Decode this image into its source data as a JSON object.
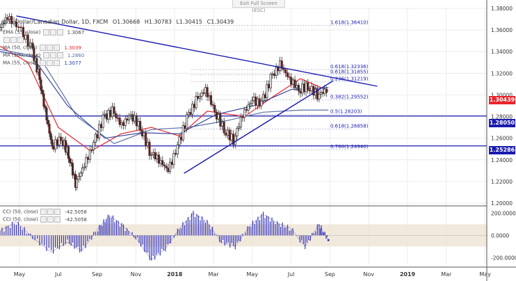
{
  "window": {
    "exit_fullscreen": "Exit Full Screen (ESC)"
  },
  "header": {
    "symbol": "U.S. Dollar/Canadian Dollar, 1D, FXCM",
    "open": "O1.30668",
    "high": "H1.30783",
    "low": "L1.30415",
    "close": "C1.30439"
  },
  "indicators": [
    {
      "label": "EMA (55, close)",
      "value": "1.3067",
      "color": "#3a4a9e"
    },
    {
      "label": "",
      "value": "",
      "color": "#88aacc"
    },
    {
      "label": "MA (50, close)",
      "value": "1.3039",
      "color": "#e8242b"
    },
    {
      "label": "MA (100, close)",
      "value": "1.2860",
      "color": "#5a6fa8"
    },
    {
      "label": "MA (55, close)",
      "value": "1.3077",
      "color": "#2233aa"
    }
  ],
  "cci": [
    {
      "label": "CCI (50, close)",
      "value": "-42.5058"
    },
    {
      "label": "CCI (50, close)",
      "value": "-42.5058"
    }
  ],
  "price_tags": [
    {
      "value": "1.30439",
      "color": "#e8242b"
    },
    {
      "value": "1.28050",
      "color": "#1a1ab0"
    },
    {
      "value": "1.25286",
      "color": "#1a1ab0"
    }
  ],
  "chart_data": {
    "type": "candlestick",
    "title": "U.S. Dollar/Canadian Dollar, 1D, FXCM",
    "y_range": [
      1.2,
      1.38
    ],
    "y_ticks": [
      "1.38000",
      "1.36000",
      "1.34000",
      "1.32000",
      "1.30000",
      "1.28000",
      "1.26000",
      "1.24000",
      "1.22000",
      "1.20000"
    ],
    "x_ticks": [
      "May",
      "Jul",
      "Sep",
      "Nov",
      "2018",
      "Mar",
      "May",
      "Jul",
      "Sep",
      "Nov",
      "2019",
      "Mar",
      "May"
    ],
    "x_range": [
      2017.33,
      2019.42
    ],
    "closes": [
      [
        2017.33,
        1.36
      ],
      [
        2017.37,
        1.372
      ],
      [
        2017.42,
        1.362
      ],
      [
        2017.47,
        1.345
      ],
      [
        2017.5,
        1.32
      ],
      [
        2017.53,
        1.285
      ],
      [
        2017.56,
        1.252
      ],
      [
        2017.6,
        1.26
      ],
      [
        2017.63,
        1.245
      ],
      [
        2017.66,
        1.218
      ],
      [
        2017.7,
        1.235
      ],
      [
        2017.74,
        1.255
      ],
      [
        2017.78,
        1.278
      ],
      [
        2017.82,
        1.285
      ],
      [
        2017.86,
        1.272
      ],
      [
        2017.9,
        1.282
      ],
      [
        2017.94,
        1.27
      ],
      [
        2017.98,
        1.248
      ],
      [
        2018.02,
        1.24
      ],
      [
        2018.06,
        1.23
      ],
      [
        2018.1,
        1.252
      ],
      [
        2018.14,
        1.278
      ],
      [
        2018.18,
        1.295
      ],
      [
        2018.22,
        1.305
      ],
      [
        2018.26,
        1.285
      ],
      [
        2018.3,
        1.268
      ],
      [
        2018.34,
        1.258
      ],
      [
        2018.38,
        1.282
      ],
      [
        2018.42,
        1.295
      ],
      [
        2018.46,
        1.292
      ],
      [
        2018.5,
        1.315
      ],
      [
        2018.54,
        1.328
      ],
      [
        2018.58,
        1.315
      ],
      [
        2018.62,
        1.305
      ],
      [
        2018.66,
        1.308
      ],
      [
        2018.7,
        1.3
      ],
      [
        2018.74,
        1.3044
      ]
    ],
    "series": [
      {
        "name": "MA (50, close)",
        "color": "#e8242b",
        "values": [
          [
            2017.33,
            1.345
          ],
          [
            2017.45,
            1.33
          ],
          [
            2017.58,
            1.27
          ],
          [
            2017.72,
            1.248
          ],
          [
            2017.85,
            1.264
          ],
          [
            2017.98,
            1.27
          ],
          [
            2018.1,
            1.262
          ],
          [
            2018.22,
            1.285
          ],
          [
            2018.38,
            1.28
          ],
          [
            2018.5,
            1.298
          ],
          [
            2018.62,
            1.315
          ],
          [
            2018.74,
            1.3039
          ]
        ]
      },
      {
        "name": "MA (100, close)",
        "color": "#5a6fa8",
        "values": [
          [
            2017.33,
            1.342
          ],
          [
            2017.5,
            1.335
          ],
          [
            2017.66,
            1.28
          ],
          [
            2017.82,
            1.255
          ],
          [
            2017.98,
            1.268
          ],
          [
            2018.14,
            1.27
          ],
          [
            2018.3,
            1.276
          ],
          [
            2018.46,
            1.284
          ],
          [
            2018.62,
            1.286
          ],
          [
            2018.74,
            1.286
          ]
        ]
      },
      {
        "name": "EMA (55, close)",
        "color": "#3a4a9e",
        "values": [
          [
            2017.33,
            1.34
          ],
          [
            2017.47,
            1.335
          ],
          [
            2017.62,
            1.29
          ],
          [
            2017.78,
            1.26
          ],
          [
            2017.94,
            1.265
          ],
          [
            2018.1,
            1.264
          ],
          [
            2018.26,
            1.282
          ],
          [
            2018.42,
            1.29
          ],
          [
            2018.58,
            1.305
          ],
          [
            2018.74,
            1.3067
          ]
        ]
      }
    ],
    "trendlines": [
      {
        "from": [
          2017.4,
          1.373
        ],
        "to": [
          2018.95,
          1.308
        ],
        "color": "#1a1ab0"
      },
      {
        "from": [
          2018.12,
          1.2275
        ],
        "to": [
          2018.76,
          1.313
        ],
        "color": "#1a1ab0"
      }
    ],
    "horizontal_levels": [
      {
        "value": 1.2805,
        "label": "1.28050",
        "color": "#1a1ab0"
      },
      {
        "value": 1.25286,
        "label": "1.25286",
        "color": "#1a1ab0"
      }
    ],
    "fibonacci": [
      {
        "label": "1.618(1.36410)",
        "value": 1.3641
      },
      {
        "label": "0.618(1.32336)",
        "value": 1.32336
      },
      {
        "label": "0.618(1.31855)",
        "value": 1.31855
      },
      {
        "label": "0.236(1.31219)",
        "value": 1.31219
      },
      {
        "label": "0.382(1.29552)",
        "value": 1.29552
      },
      {
        "label": "0.5(1.28203)",
        "value": 1.28203
      },
      {
        "label": "0.618(1.26858)",
        "value": 1.26858
      },
      {
        "label": "0.786(1.24940)",
        "value": 1.2494
      }
    ],
    "cci_panel": {
      "y_ticks": [
        "200.0000",
        "0.0000",
        "-200.0000"
      ],
      "y_range": [
        -260,
        240
      ],
      "band": [
        -100,
        100
      ],
      "values": [
        [
          2017.33,
          40
        ],
        [
          2017.4,
          120
        ],
        [
          2017.47,
          -20
        ],
        [
          2017.55,
          -150
        ],
        [
          2017.62,
          -60
        ],
        [
          2017.68,
          -140
        ],
        [
          2017.75,
          60
        ],
        [
          2017.8,
          180
        ],
        [
          2017.86,
          80
        ],
        [
          2017.92,
          -40
        ],
        [
          2017.98,
          -220
        ],
        [
          2018.04,
          -120
        ],
        [
          2018.1,
          60
        ],
        [
          2018.16,
          200
        ],
        [
          2018.22,
          120
        ],
        [
          2018.28,
          -60
        ],
        [
          2018.34,
          -100
        ],
        [
          2018.4,
          80
        ],
        [
          2018.46,
          190
        ],
        [
          2018.52,
          110
        ],
        [
          2018.58,
          60
        ],
        [
          2018.64,
          -100
        ],
        [
          2018.7,
          100
        ],
        [
          2018.74,
          -42.5058
        ]
      ]
    }
  }
}
